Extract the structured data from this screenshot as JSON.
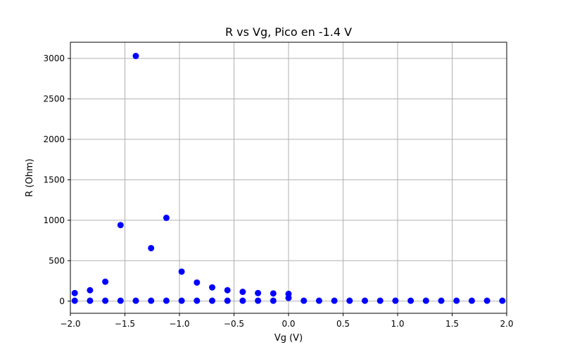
{
  "chart_data": {
    "type": "scatter",
    "title": "R vs Vg, Pico en -1.4 V",
    "xlabel": "Vg (V)",
    "ylabel": "R (Ohm)",
    "xlim": [
      -2.0,
      2.0
    ],
    "ylim": [
      -150,
      3200
    ],
    "xticks": [
      -2.0,
      -1.5,
      -1.0,
      -0.5,
      0.0,
      0.5,
      1.0,
      1.5,
      2.0
    ],
    "xtick_labels": [
      "−2.0",
      "−1.5",
      "−1.0",
      "−0.5",
      "0.0",
      "0.5",
      "1.0",
      "1.5",
      "2.0"
    ],
    "yticks": [
      0,
      500,
      1000,
      1500,
      2000,
      2500,
      3000
    ],
    "ytick_labels": [
      "0",
      "500",
      "1000",
      "1500",
      "2000",
      "2500",
      "3000"
    ],
    "grid": true,
    "marker_color": "#0000ff",
    "series": [
      {
        "points": [
          [
            -1.96,
            100
          ],
          [
            -1.82,
            135
          ],
          [
            -1.68,
            240
          ],
          [
            -1.54,
            940
          ],
          [
            -1.4,
            3030
          ],
          [
            -1.26,
            655
          ],
          [
            -1.12,
            1030
          ],
          [
            -0.98,
            365
          ],
          [
            -0.84,
            230
          ],
          [
            -0.7,
            170
          ],
          [
            -0.56,
            135
          ],
          [
            -0.42,
            115
          ],
          [
            -0.28,
            100
          ],
          [
            -0.14,
            95
          ],
          [
            0.0,
            90
          ],
          [
            0.0,
            40
          ],
          [
            -1.96,
            5
          ],
          [
            -1.82,
            5
          ],
          [
            -1.68,
            5
          ],
          [
            -1.54,
            5
          ],
          [
            -1.4,
            5
          ],
          [
            -1.26,
            5
          ],
          [
            -1.12,
            5
          ],
          [
            -0.98,
            5
          ],
          [
            -0.84,
            5
          ],
          [
            -0.7,
            5
          ],
          [
            -0.56,
            5
          ],
          [
            -0.42,
            5
          ],
          [
            -0.28,
            5
          ],
          [
            -0.14,
            5
          ],
          [
            0.14,
            5
          ],
          [
            0.28,
            5
          ],
          [
            0.42,
            5
          ],
          [
            0.56,
            5
          ],
          [
            0.7,
            5
          ],
          [
            0.84,
            5
          ],
          [
            0.98,
            5
          ],
          [
            1.12,
            5
          ],
          [
            1.26,
            5
          ],
          [
            1.4,
            5
          ],
          [
            1.54,
            5
          ],
          [
            1.68,
            5
          ],
          [
            1.82,
            5
          ],
          [
            1.96,
            5
          ]
        ]
      }
    ]
  }
}
